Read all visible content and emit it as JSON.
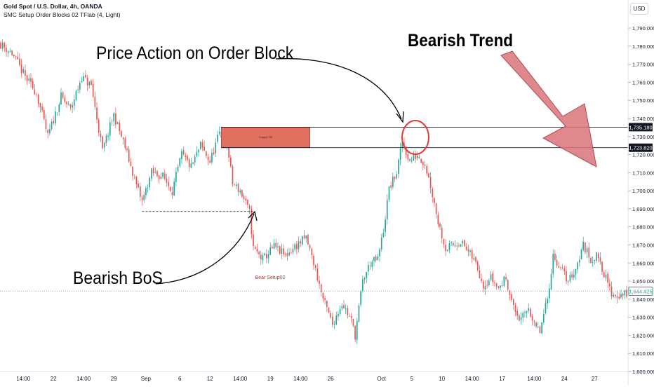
{
  "header": {
    "title": "Gold Spot / U.S. Dollar, 4h, OANDA",
    "indicator": "SMC Setup Order Blocks 02 TFlab (4, Light)"
  },
  "currency_button": "USD",
  "annotations": {
    "price_action": "Price Action on Order Block",
    "bearish_trend": "Bearish Trend",
    "bearish_bos": "Bearish BoS",
    "bear_setup": "Bear Setup02",
    "supply_ob": "Supply OB"
  },
  "colors": {
    "up": "#26a69a",
    "down": "#ef5350",
    "order_block_fill": "#e07060",
    "order_block_border": "#3b5bd6",
    "arrow_fill": "#d9737a",
    "circle": "#e53935",
    "price_tag": "#26a69a"
  },
  "chart_data": {
    "type": "candlestick",
    "title": "Gold Spot / U.S. Dollar, 4h, OANDA",
    "ylim": [
      1600,
      1797
    ],
    "y_ticks": [
      1790,
      1780,
      1770,
      1760,
      1750,
      1740,
      1730,
      1720,
      1710,
      1700,
      1690,
      1680,
      1670,
      1660,
      1650,
      1640,
      1630,
      1620,
      1610,
      1600
    ],
    "y_tick_labels": [
      "1,790.000",
      "1,780.000",
      "1,770.000",
      "1,760.000",
      "1,750.000",
      "1,740.000",
      "1,730.000",
      "1,720.000",
      "1,710.000",
      "1,700.000",
      "1,690.000",
      "1,680.000",
      "1,670.000",
      "1,660.000",
      "1,650.000",
      "1,640.000",
      "1,630.000",
      "1,620.000",
      "1,610.000",
      "1,600.000"
    ],
    "x_tick_labels": [
      "14:00",
      "22",
      "14:00",
      "29",
      "Sep",
      "6",
      "12",
      "14:00",
      "19",
      "14:00",
      "26",
      "Oct",
      "5",
      "10",
      "14:00",
      "17",
      "14:00",
      "24",
      "27"
    ],
    "x_tick_bar_index": [
      12,
      28,
      44,
      60,
      77,
      95,
      111,
      127,
      143,
      159,
      175,
      202,
      218,
      234,
      250,
      266,
      283,
      299,
      315
    ],
    "bar_count": 333,
    "levels": [
      {
        "label": "1,735.180",
        "value": 1735.18
      },
      {
        "label": "1,723.820",
        "value": 1723.82
      }
    ],
    "last_price": {
      "label": "1,644.425",
      "value": 1644.425
    },
    "order_block": {
      "label": "Supply OB",
      "top": 1735.18,
      "bottom": 1723.82,
      "start_bar": 117,
      "end_bar": 164
    },
    "bos_line": {
      "value": 1688.5,
      "start_bar": 75,
      "end_bar": 134
    },
    "path_anchors": [
      [
        0,
        1782
      ],
      [
        7,
        1776
      ],
      [
        14,
        1763
      ],
      [
        20,
        1754
      ],
      [
        26,
        1730
      ],
      [
        33,
        1752
      ],
      [
        38,
        1745
      ],
      [
        44,
        1763
      ],
      [
        49,
        1758
      ],
      [
        55,
        1722
      ],
      [
        61,
        1742
      ],
      [
        67,
        1724
      ],
      [
        73,
        1703
      ],
      [
        76,
        1694
      ],
      [
        81,
        1710
      ],
      [
        87,
        1708
      ],
      [
        92,
        1700
      ],
      [
        97,
        1720
      ],
      [
        102,
        1713
      ],
      [
        107,
        1725
      ],
      [
        112,
        1716
      ],
      [
        117,
        1732
      ],
      [
        121,
        1726
      ],
      [
        124,
        1704
      ],
      [
        128,
        1700
      ],
      [
        133,
        1688
      ],
      [
        135,
        1668
      ],
      [
        140,
        1662
      ],
      [
        146,
        1669
      ],
      [
        152,
        1664
      ],
      [
        158,
        1670
      ],
      [
        163,
        1674
      ],
      [
        167,
        1660
      ],
      [
        172,
        1640
      ],
      [
        177,
        1626
      ],
      [
        182,
        1638
      ],
      [
        187,
        1628
      ],
      [
        189,
        1620
      ],
      [
        193,
        1650
      ],
      [
        197,
        1660
      ],
      [
        201,
        1662
      ],
      [
        204,
        1678
      ],
      [
        207,
        1701
      ],
      [
        211,
        1710
      ],
      [
        214,
        1727
      ],
      [
        218,
        1716
      ],
      [
        222,
        1720
      ],
      [
        226,
        1715
      ],
      [
        229,
        1703
      ],
      [
        233,
        1683
      ],
      [
        237,
        1668
      ],
      [
        241,
        1670
      ],
      [
        245,
        1672
      ],
      [
        249,
        1666
      ],
      [
        253,
        1660
      ],
      [
        257,
        1648
      ],
      [
        261,
        1652
      ],
      [
        265,
        1646
      ],
      [
        269,
        1652
      ],
      [
        273,
        1635
      ],
      [
        277,
        1628
      ],
      [
        281,
        1636
      ],
      [
        284,
        1625
      ],
      [
        287,
        1622
      ],
      [
        291,
        1640
      ],
      [
        294,
        1664
      ],
      [
        298,
        1657
      ],
      [
        302,
        1650
      ],
      [
        306,
        1657
      ],
      [
        310,
        1670
      ],
      [
        314,
        1662
      ],
      [
        318,
        1664
      ],
      [
        321,
        1654
      ],
      [
        325,
        1643
      ],
      [
        329,
        1642
      ],
      [
        332,
        1643
      ]
    ]
  }
}
